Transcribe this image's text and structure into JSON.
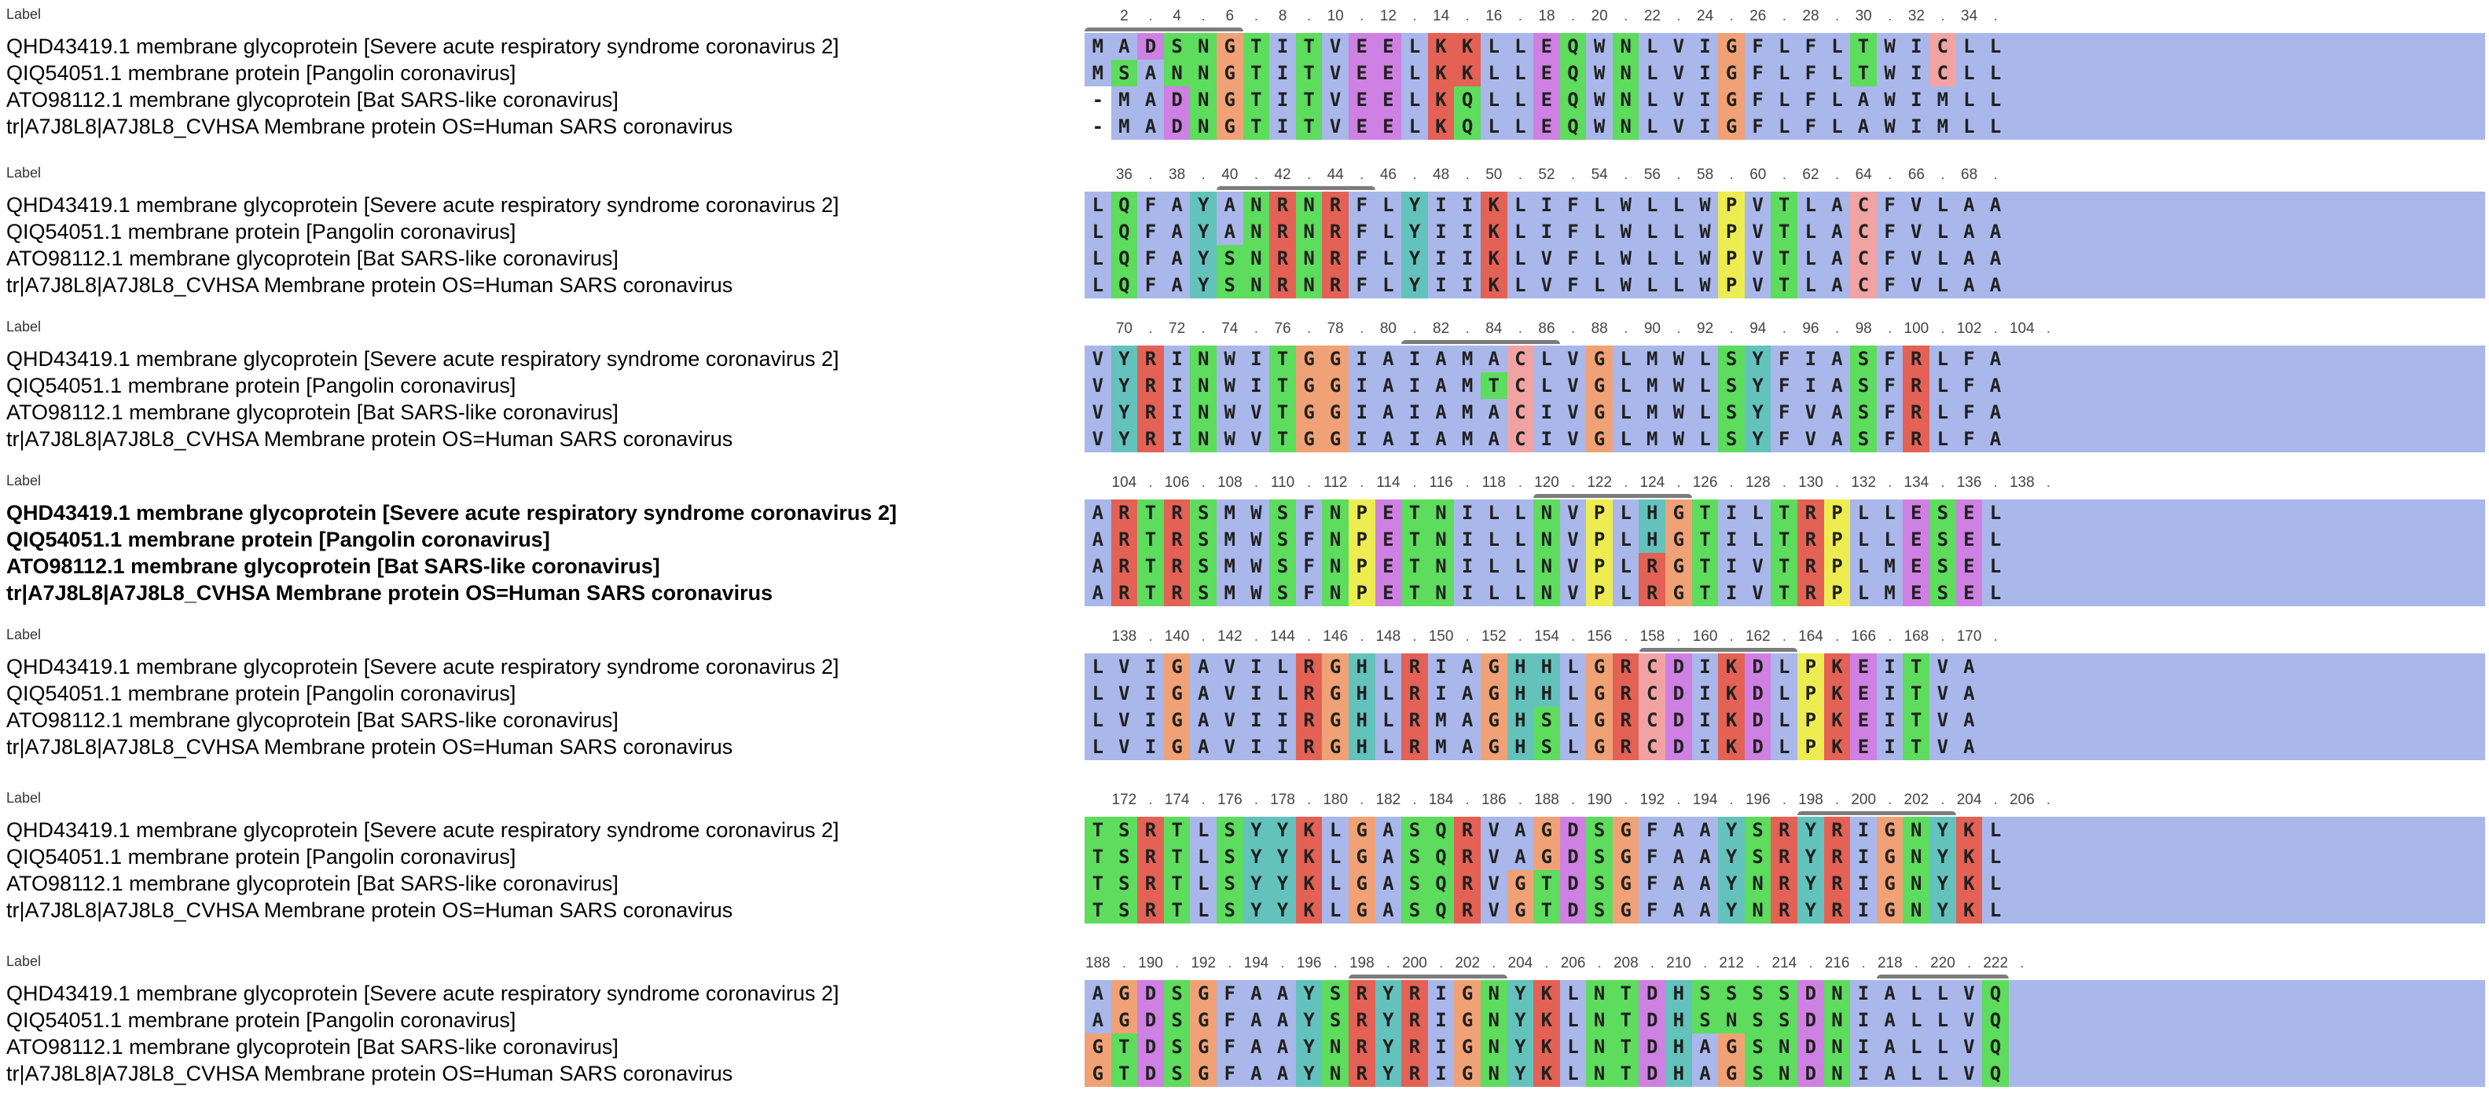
{
  "colors": {
    "hydrophobic": "#a9b7ea",
    "green": "#5ddc5d",
    "red": "#e46155",
    "pink": "#f1a3a3",
    "magenta": "#cf80e3",
    "orange": "#f0a276",
    "teal": "#64c2bd",
    "yellow": "#eded52",
    "ruler_bar": "#7c7c7c"
  },
  "alignment": {
    "label_text": "Label",
    "sequences": [
      "QHD43419.1 membrane glycoprotein [Severe acute respiratory syndrome coronavirus 2]",
      "QIQ54051.1 membrane protein [Pangolin coronavirus]",
      "ATO98112.1 membrane glycoprotein [Bat SARS-like coronavirus]",
      "tr|A7J8L8|A7J8L8_CVHSA Membrane protein OS=Human SARS coronavirus"
    ],
    "blocks": [
      {
        "start": 1,
        "ticks": [
          "2",
          "4",
          "6",
          "8",
          "10",
          "12",
          "14",
          "16",
          "18",
          "20",
          "22",
          "24",
          "26",
          "28",
          "30",
          "32",
          "34"
        ],
        "rows": [
          "MADSNGTITVEELKKLLEQWNLVIGFLFLTWICLL",
          "MSANNGTITVEELKKLLEQWNLVIGFLFLTWICLL",
          "-MADNGTITVEELKQLLEQWNLVIGFLFLAWIMLL",
          "-MADNGTITVEELKQLLEQWNLVIGFLFLAWIMLL"
        ],
        "bold": false
      },
      {
        "start": 35,
        "ticks": [
          "36",
          "38",
          "40",
          "42",
          "44",
          "46",
          "48",
          "50",
          "52",
          "54",
          "56",
          "58",
          "60",
          "62",
          "64",
          "66",
          "68"
        ],
        "rows": [
          "LQFAYANRNRFLYIIKLIFLWLLWPVTLACFVLAA",
          "LQFAYANRNRFLYIIKLIFLWLLWPVTLACFVLAA",
          "LQFAYSNRNRFLYIIKLVFLWLLWPVTLACFVLAA",
          "LQFAYSNRNRFLYIIKLVFLWLLWPVTLACFVLAA"
        ],
        "bold": false
      },
      {
        "start": 69,
        "ticks": [
          "70",
          "72",
          "74",
          "76",
          "78",
          "80",
          "82",
          "84",
          "86",
          "88",
          "90",
          "92",
          "94",
          "96",
          "98",
          "100",
          "102",
          "104"
        ],
        "rows": [
          "VYRINWITGGIAIAMACLVGLMWLSYFIASFRLFA",
          "VYRINWITGGIAIAMTCLVGLMWLSYFIASFRLFA",
          "VYRINWVTGGIAIAMACIVGLMWLSYFVASFRLFA",
          "VYRINWVTGGIAIAMACIVGLMWLSYFVASFRLFA"
        ],
        "bold": false
      },
      {
        "start": 103,
        "ticks": [
          "104",
          "106",
          "108",
          "110",
          "112",
          "114",
          "116",
          "118",
          "120",
          "122",
          "124",
          "126",
          "128",
          "130",
          "132",
          "134",
          "136",
          "138"
        ],
        "rows": [
          "ARTRSMWSFNPETNILLNVPLHGTILTRPLLESEL",
          "ARTRSMWSFNPETNILLNVPLHGTILTRPLLESEL",
          "ARTRSMWSFNPETNILLNVPLRGTIVTRPLMESEL",
          "ARTRSMWSFNPETNILLNVPLRGTIVTRPLMESEL"
        ],
        "bold": true
      },
      {
        "start": 137,
        "ticks": [
          "138",
          "140",
          "142",
          "144",
          "146",
          "148",
          "150",
          "152",
          "154",
          "156",
          "158",
          "160",
          "162",
          "164",
          "166",
          "168",
          "170"
        ],
        "rows": [
          "LVIGAVILRGHLRIAGHHLGRCDIKDLPKEITVA",
          "LVIGAVILRGHLRIAGHHLGRCDIKDLPKEITVA",
          "LVIGAVIIRGHLRMAGHSLGRCDIKDLPKEITVA",
          "LVIGAVIIRGHLRMAGHSLGRCDIKDLPKEITVA"
        ],
        "bold": false
      },
      {
        "start": 171,
        "ticks": [
          "172",
          "174",
          "176",
          "178",
          "180",
          "182",
          "184",
          "186",
          "188",
          "190",
          "192",
          "194",
          "196",
          "198",
          "200",
          "202",
          "204",
          "206"
        ],
        "rows": [
          "TSRTLSYYKLGASQRVAGDSGFAAYSRYRIGNYKL",
          "TSRTLSYYKLGASQRVAGDSGFAAYSRYRIGNYKL",
          "TSRTLSYYKLGASQRVGTDSGFAAYNRYRIGNYKL",
          "TSRTLSYYKLGASQRVGTDSGFAAYNRYRIGNYKL"
        ],
        "bold": false
      },
      {
        "start": 188,
        "ticks": [
          "188",
          "190",
          "192",
          "194",
          "196",
          "198",
          "200",
          "202",
          "204",
          "206",
          "208",
          "210",
          "212",
          "214",
          "216",
          "218",
          "220",
          "222"
        ],
        "rows": [
          "AGDSGFAAYSRYRIGNYKLNTDHSSSSDNIALLVQ",
          "AGDSGFAAYSRYRIGNYKLNTDHSNSSDNIALLVQ",
          "GTDSGFAAYNRYRIGNYKLNTDHAGSNDNIALLVQ",
          "GTDSGFAAYNRYRIGNYKLNTDHAGSNDNIALLVQ"
        ],
        "bold": false
      }
    ],
    "bars": [
      {
        "from": 1,
        "to": 6
      },
      {
        "from": 40,
        "to": 45
      },
      {
        "from": 81,
        "to": 86
      },
      {
        "from": 120,
        "to": 125
      },
      {
        "from": 158,
        "to": 163
      },
      {
        "from": 198,
        "to": 203
      },
      {
        "from": 218,
        "to": 222
      }
    ]
  }
}
